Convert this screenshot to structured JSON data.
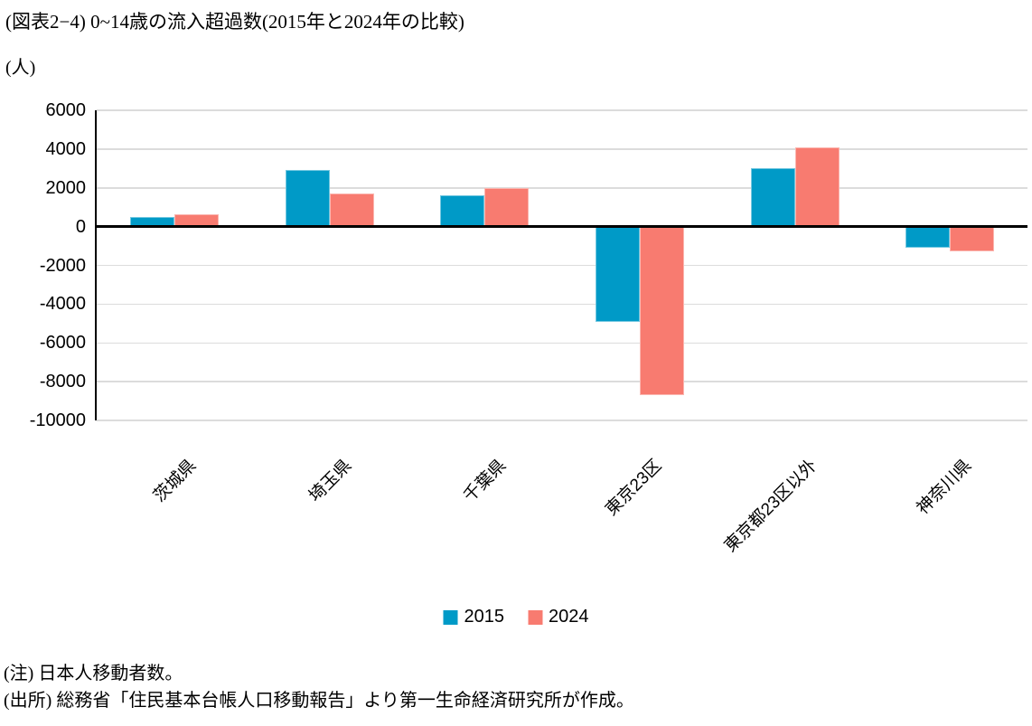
{
  "chart_data": {
    "type": "bar",
    "title": "(図表2−4) 0~14歳の流入超過数(2015年と2024年の比較)",
    "unit_label": "(人)",
    "categories": [
      "茨城県",
      "埼玉県",
      "千葉県",
      "東京23区",
      "東京都23区以外",
      "神奈川県"
    ],
    "series": [
      {
        "name": "2015",
        "color": "#009AC7",
        "values": [
          500,
          2900,
          1600,
          -4900,
          3000,
          -1100
        ]
      },
      {
        "name": "2024",
        "color": "#F87B70",
        "values": [
          650,
          1700,
          2000,
          -8700,
          4100,
          -1300
        ]
      }
    ],
    "ylim": [
      -10000,
      6000
    ],
    "ytick_step": 2000,
    "grid": true,
    "legend_position": "bottom",
    "axis_color": "#000000",
    "gridline_color": "#DCDCDC"
  },
  "notes": [
    "(注) 日本人移動者数。",
    "(出所) 総務省「住民基本台帳人口移動報告」より第一生命経済研究所が作成。"
  ]
}
